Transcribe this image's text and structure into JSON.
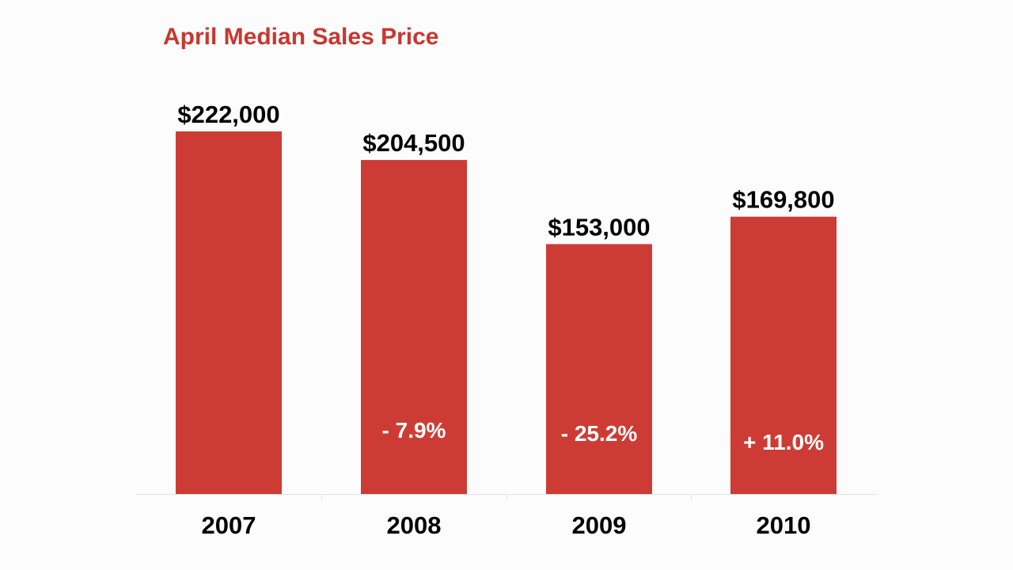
{
  "colors": {
    "bar": "#cc3c35",
    "title": "#c8372f",
    "baseline": "#e2e2e2",
    "background": "#fcfcfc"
  },
  "chart_data": {
    "type": "bar",
    "title": "April Median Sales Price",
    "xlabel": "",
    "ylabel": "",
    "categories": [
      "2007",
      "2008",
      "2009",
      "2010"
    ],
    "values": [
      222000,
      204500,
      153000,
      169800
    ],
    "value_labels": [
      "$222,000",
      "$204,500",
      "$153,000",
      "$169,800"
    ],
    "change_labels": [
      "",
      "- 7.9%",
      "- 25.2%",
      "+ 11.0%"
    ],
    "ylim": [
      0,
      222000
    ],
    "grid": false,
    "legend": "none"
  }
}
